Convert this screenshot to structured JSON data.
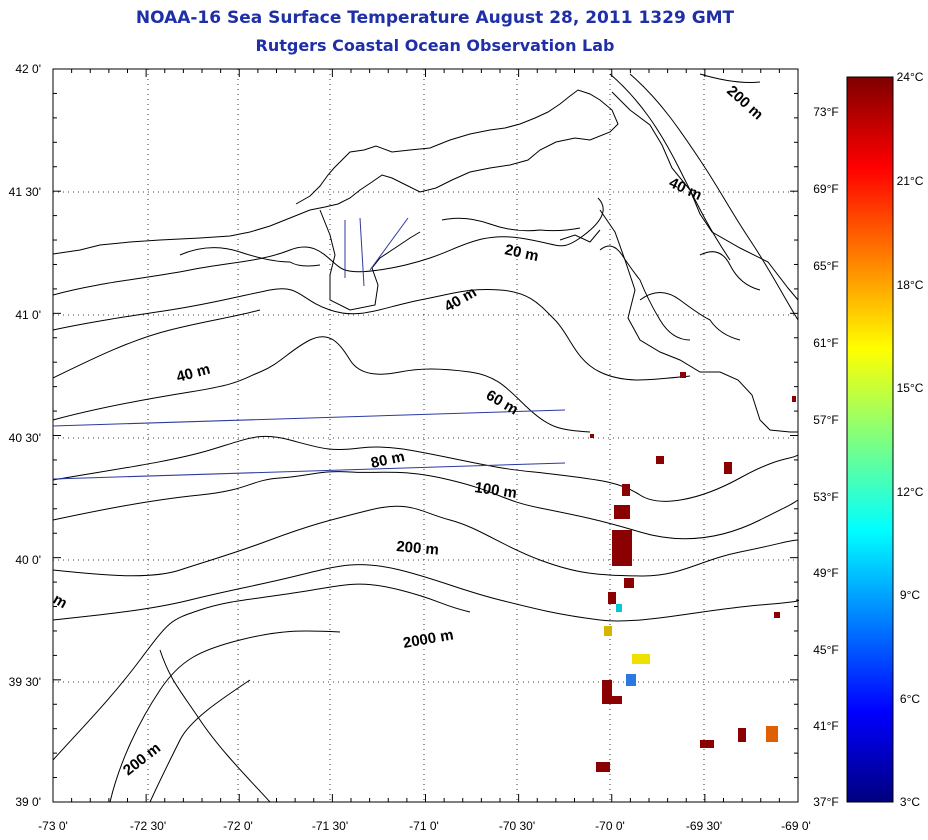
{
  "title": {
    "line1": "NOAA-16 Sea Surface Temperature August 28, 2011 1329 GMT",
    "line2": "Rutgers Coastal Ocean Observation Lab"
  },
  "map": {
    "lat_labels": [
      "42 0'",
      "41 30'",
      "41 0'",
      "40 30'",
      "40 0'",
      "39 30'",
      "39 0'"
    ],
    "lon_labels": [
      "-73 0'",
      "-72 30'",
      "-72 0'",
      "-71 30'",
      "-71 0'",
      "-70 30'",
      "-70 0'",
      "-69 30'",
      "-69 0'"
    ],
    "lat_range": [
      39.0,
      42.0
    ],
    "lon_range": [
      -73.0,
      -69.0
    ],
    "grid": "dotted",
    "contour_labels": [
      "200 m",
      "40 m",
      "20 m",
      "40 m",
      "40 m",
      "60 m",
      "80 m",
      "100 m",
      "200 m",
      "2000 m",
      "200 m",
      "m"
    ],
    "colors": {
      "land_line": "#000000",
      "track_line": "#2a3aa0",
      "title": "#1f2fa8"
    }
  },
  "colorbar": {
    "celsius_labels": [
      "24°C",
      "21°C",
      "18°C",
      "15°C",
      "12°C",
      "9°C",
      "6°C",
      "3°C"
    ],
    "fahrenheit_labels": [
      "73°F",
      "69°F",
      "65°F",
      "61°F",
      "57°F",
      "53°F",
      "49°F",
      "45°F",
      "41°F",
      "37°F"
    ],
    "range_c": [
      3,
      24
    ],
    "colors": [
      "#00007f",
      "#0000ff",
      "#007fff",
      "#00ffff",
      "#7fff7f",
      "#ffff00",
      "#ff7f00",
      "#ff0000",
      "#7f0000"
    ]
  }
}
